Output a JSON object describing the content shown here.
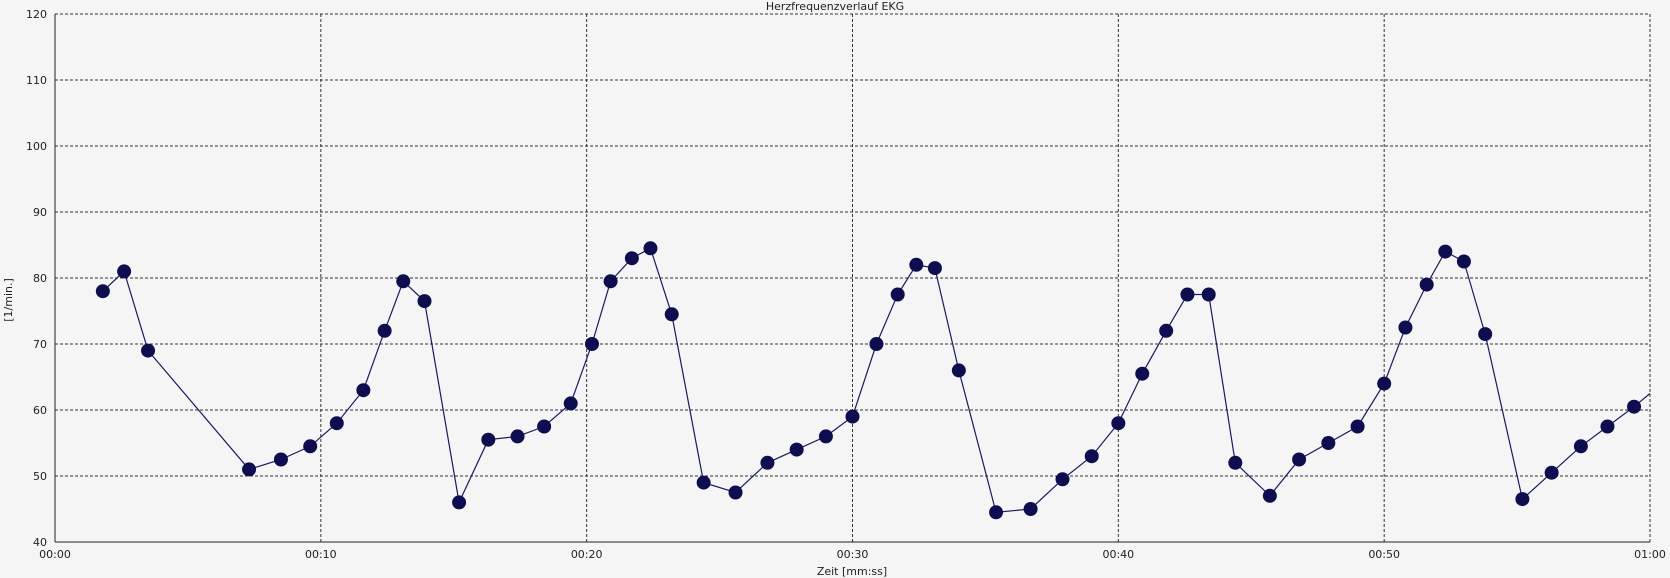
{
  "chart_data": {
    "type": "line",
    "title": "Herzfrequenzverlauf EKG",
    "xlabel": "Zeit [mm:ss]",
    "ylabel": "[1/min.]",
    "xlim": [
      0,
      60
    ],
    "ylim": [
      40,
      120
    ],
    "x_ticks": [
      0,
      10,
      20,
      30,
      40,
      50,
      60
    ],
    "x_tick_labels": [
      "00:00",
      "00:10",
      "00:20",
      "00:30",
      "00:40",
      "00:50",
      "01:00"
    ],
    "y_ticks": [
      40,
      50,
      60,
      70,
      80,
      90,
      100,
      110,
      120
    ],
    "y_tick_labels": [
      "40",
      "50",
      "60",
      "70",
      "80",
      "90",
      "100",
      "110",
      "120"
    ],
    "grid": true,
    "colors": {
      "line": "#1a1a5e",
      "marker": "#0d0d4f",
      "grid": "#333333",
      "background": "#f5f5f5"
    },
    "series": [
      {
        "x": [
          1.8,
          2.6,
          3.5,
          7.3,
          8.5,
          9.6,
          10.6,
          11.6,
          12.4,
          13.1,
          13.9,
          15.2,
          16.3,
          17.4,
          18.4,
          19.4,
          20.2,
          20.9,
          21.7,
          22.4,
          23.2,
          24.4,
          25.6,
          26.8,
          27.9,
          29.0,
          30.0,
          30.9,
          31.7,
          32.4,
          33.1,
          34.0,
          35.4,
          36.7,
          37.9,
          39.0,
          40.0,
          40.9,
          41.8,
          42.6,
          43.4,
          44.4,
          45.7,
          46.8,
          47.9,
          49.0,
          50.0,
          50.8,
          51.6,
          52.3,
          53.0,
          53.8,
          55.2,
          56.3,
          57.4,
          58.4,
          59.4,
          60.0
        ],
        "y": [
          78,
          81,
          69,
          51,
          52.5,
          54.5,
          58,
          63,
          72,
          79.5,
          76.5,
          46,
          55.5,
          56,
          57.5,
          61,
          70,
          79.5,
          83,
          84.5,
          74.5,
          49,
          47.5,
          52,
          54,
          56,
          59,
          70,
          77.5,
          82,
          81.5,
          66,
          44.5,
          45,
          49.5,
          53,
          58,
          65.5,
          72,
          77.5,
          77.5,
          52,
          47,
          52.5,
          55,
          57.5,
          64,
          72.5,
          79,
          84,
          82.5,
          71.5,
          46.5,
          50.5,
          54.5,
          57.5,
          60.5,
          62.5
        ],
        "markers": 57
      }
    ]
  }
}
